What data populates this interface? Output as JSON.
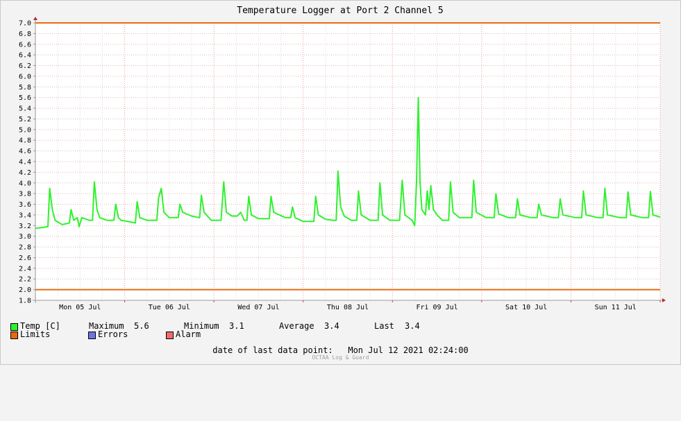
{
  "chart_data": {
    "type": "line",
    "title": "Temperature Logger at Port 2 Channel 5",
    "xlabel": "",
    "ylabel": "",
    "ylim": [
      1.8,
      7.0
    ],
    "yticks": [
      "1.8",
      "2.0",
      "2.2",
      "2.4",
      "2.6",
      "2.8",
      "3.0",
      "3.2",
      "3.4",
      "3.6",
      "3.8",
      "4.0",
      "4.2",
      "4.4",
      "4.6",
      "4.8",
      "5.0",
      "5.2",
      "5.4",
      "5.6",
      "5.8",
      "6.0",
      "6.2",
      "6.4",
      "6.6",
      "6.8",
      "7.0"
    ],
    "xrange_days": [
      0,
      7
    ],
    "xticks": [
      {
        "label": "Mon 05 Jul",
        "day": 0.5
      },
      {
        "label": "Tue 06 Jul",
        "day": 1.5
      },
      {
        "label": "Wed 07 Jul",
        "day": 2.5
      },
      {
        "label": "Thu 08 Jul",
        "day": 3.5
      },
      {
        "label": "Fri 09 Jul",
        "day": 4.5
      },
      {
        "label": "Sat 10 Jul",
        "day": 5.5
      },
      {
        "label": "Sun 11 Jul",
        "day": 6.5
      }
    ],
    "limits": {
      "upper": 7.0,
      "lower": 2.0,
      "color": "#e86a10"
    },
    "series": [
      {
        "name": "Temp [C]",
        "color": "#2ef22e",
        "points": [
          [
            0.0,
            3.15
          ],
          [
            0.1,
            3.17
          ],
          [
            0.14,
            3.18
          ],
          [
            0.16,
            3.9
          ],
          [
            0.19,
            3.5
          ],
          [
            0.22,
            3.3
          ],
          [
            0.3,
            3.22
          ],
          [
            0.38,
            3.25
          ],
          [
            0.4,
            3.5
          ],
          [
            0.43,
            3.3
          ],
          [
            0.47,
            3.35
          ],
          [
            0.49,
            3.18
          ],
          [
            0.52,
            3.35
          ],
          [
            0.6,
            3.3
          ],
          [
            0.64,
            3.3
          ],
          [
            0.66,
            4.02
          ],
          [
            0.69,
            3.5
          ],
          [
            0.72,
            3.35
          ],
          [
            0.8,
            3.3
          ],
          [
            0.88,
            3.3
          ],
          [
            0.9,
            3.6
          ],
          [
            0.93,
            3.35
          ],
          [
            0.96,
            3.3
          ],
          [
            1.06,
            3.27
          ],
          [
            1.12,
            3.25
          ],
          [
            1.14,
            3.65
          ],
          [
            1.17,
            3.35
          ],
          [
            1.25,
            3.3
          ],
          [
            1.32,
            3.3
          ],
          [
            1.36,
            3.3
          ],
          [
            1.38,
            3.72
          ],
          [
            1.41,
            3.9
          ],
          [
            1.44,
            3.45
          ],
          [
            1.5,
            3.35
          ],
          [
            1.56,
            3.35
          ],
          [
            1.6,
            3.35
          ],
          [
            1.62,
            3.6
          ],
          [
            1.65,
            3.45
          ],
          [
            1.75,
            3.38
          ],
          [
            1.84,
            3.35
          ],
          [
            1.86,
            3.77
          ],
          [
            1.89,
            3.45
          ],
          [
            1.97,
            3.3
          ],
          [
            2.08,
            3.3
          ],
          [
            2.11,
            4.02
          ],
          [
            2.14,
            3.45
          ],
          [
            2.2,
            3.38
          ],
          [
            2.26,
            3.38
          ],
          [
            2.3,
            3.45
          ],
          [
            2.34,
            3.3
          ],
          [
            2.37,
            3.3
          ],
          [
            2.39,
            3.75
          ],
          [
            2.42,
            3.4
          ],
          [
            2.5,
            3.33
          ],
          [
            2.58,
            3.33
          ],
          [
            2.62,
            3.33
          ],
          [
            2.64,
            3.75
          ],
          [
            2.67,
            3.45
          ],
          [
            2.8,
            3.35
          ],
          [
            2.86,
            3.35
          ],
          [
            2.88,
            3.55
          ],
          [
            2.91,
            3.35
          ],
          [
            3.0,
            3.28
          ],
          [
            3.08,
            3.28
          ],
          [
            3.12,
            3.28
          ],
          [
            3.14,
            3.75
          ],
          [
            3.17,
            3.4
          ],
          [
            3.25,
            3.32
          ],
          [
            3.33,
            3.3
          ],
          [
            3.37,
            3.3
          ],
          [
            3.39,
            4.22
          ],
          [
            3.42,
            3.55
          ],
          [
            3.46,
            3.38
          ],
          [
            3.54,
            3.3
          ],
          [
            3.6,
            3.3
          ],
          [
            3.62,
            3.85
          ],
          [
            3.65,
            3.4
          ],
          [
            3.75,
            3.3
          ],
          [
            3.84,
            3.3
          ],
          [
            3.86,
            4.0
          ],
          [
            3.89,
            3.4
          ],
          [
            3.97,
            3.3
          ],
          [
            4.08,
            3.3
          ],
          [
            4.11,
            4.05
          ],
          [
            4.14,
            3.4
          ],
          [
            4.22,
            3.3
          ],
          [
            4.25,
            3.2
          ],
          [
            4.27,
            4.02
          ],
          [
            4.29,
            5.6
          ],
          [
            4.31,
            4.0
          ],
          [
            4.33,
            3.5
          ],
          [
            4.37,
            3.4
          ],
          [
            4.39,
            3.85
          ],
          [
            4.41,
            3.5
          ],
          [
            4.43,
            3.95
          ],
          [
            4.46,
            3.5
          ],
          [
            4.5,
            3.4
          ],
          [
            4.56,
            3.3
          ],
          [
            4.6,
            3.3
          ],
          [
            4.63,
            3.3
          ],
          [
            4.65,
            4.02
          ],
          [
            4.68,
            3.45
          ],
          [
            4.75,
            3.35
          ],
          [
            4.85,
            3.35
          ],
          [
            4.89,
            3.35
          ],
          [
            4.91,
            4.05
          ],
          [
            4.94,
            3.45
          ],
          [
            5.05,
            3.35
          ],
          [
            5.1,
            3.35
          ],
          [
            5.14,
            3.35
          ],
          [
            5.16,
            3.8
          ],
          [
            5.19,
            3.42
          ],
          [
            5.3,
            3.35
          ],
          [
            5.38,
            3.35
          ],
          [
            5.4,
            3.7
          ],
          [
            5.43,
            3.4
          ],
          [
            5.55,
            3.35
          ],
          [
            5.62,
            3.35
          ],
          [
            5.64,
            3.6
          ],
          [
            5.67,
            3.4
          ],
          [
            5.8,
            3.35
          ],
          [
            5.86,
            3.35
          ],
          [
            5.88,
            3.7
          ],
          [
            5.91,
            3.4
          ],
          [
            6.05,
            3.35
          ],
          [
            6.12,
            3.35
          ],
          [
            6.14,
            3.85
          ],
          [
            6.17,
            3.4
          ],
          [
            6.3,
            3.35
          ],
          [
            6.36,
            3.35
          ],
          [
            6.38,
            3.9
          ],
          [
            6.41,
            3.4
          ],
          [
            6.55,
            3.35
          ],
          [
            6.62,
            3.35
          ],
          [
            6.64,
            3.83
          ],
          [
            6.67,
            3.4
          ],
          [
            6.8,
            3.35
          ],
          [
            6.87,
            3.35
          ],
          [
            6.89,
            3.84
          ],
          [
            6.92,
            3.4
          ],
          [
            7.0,
            3.36
          ]
        ]
      }
    ]
  },
  "legend": {
    "temp_label": "Temp [C]",
    "temp_color": "#2ef22e",
    "maximum_label": "Maximum",
    "maximum_value": "5.6",
    "minimum_label": "Minimum",
    "minimum_value": "3.1",
    "average_label": "Average",
    "average_value": "3.4",
    "last_label": "Last",
    "last_value": "3.4",
    "limits_label": "Limits",
    "limits_color": "#e86a10",
    "errors_label": "Errors",
    "errors_color": "#6f73e6",
    "alarm_label": "Alarm",
    "alarm_color": "#f06b6b"
  },
  "footer": {
    "date_label": "date of last data point:",
    "date_value": "Mon Jul 12 2021 02:24:00",
    "credit": "OCTAA Log & Guard"
  }
}
